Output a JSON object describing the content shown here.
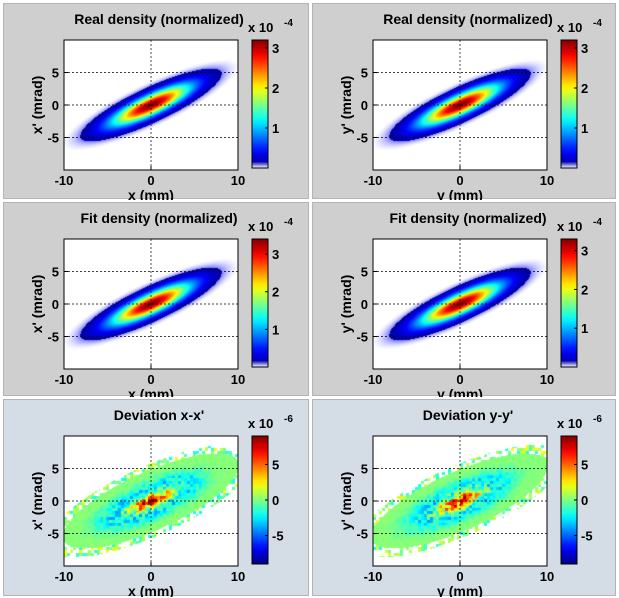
{
  "figure": {
    "colormap": "jet",
    "panel_background": "#cfcfcf",
    "bottom_row_background": "#d4dde6"
  },
  "chart_data": [
    {
      "type": "heatmap",
      "title": "Real density (normalized)",
      "xlabel": "x (mm)",
      "ylabel": "x' (mrad)",
      "xlim": [
        -10,
        10
      ],
      "ylim": [
        -10,
        10
      ],
      "xticks": [
        -10,
        0,
        10
      ],
      "yticks": [
        -5,
        0,
        5
      ],
      "grid": true,
      "colorbar": {
        "min": 0,
        "max": 3.2,
        "ticks": [
          1,
          2,
          3
        ],
        "exponent_label": "x 10",
        "exponent": "-4"
      },
      "distribution": {
        "kind": "gaussian",
        "peak": 3.2,
        "tilt_deg": 33,
        "sigma_major": 3.6,
        "sigma_minor": 0.95
      }
    },
    {
      "type": "heatmap",
      "title": "Real density (normalized)",
      "xlabel": "y (mm)",
      "ylabel": "y' (mrad)",
      "xlim": [
        -10,
        10
      ],
      "ylim": [
        -10,
        10
      ],
      "xticks": [
        -10,
        0,
        10
      ],
      "yticks": [
        -5,
        0,
        5
      ],
      "grid": true,
      "colorbar": {
        "min": 0,
        "max": 3.2,
        "ticks": [
          1,
          2,
          3
        ],
        "exponent_label": "x 10",
        "exponent": "-4"
      },
      "distribution": {
        "kind": "gaussian",
        "peak": 3.2,
        "tilt_deg": 33,
        "sigma_major": 3.6,
        "sigma_minor": 0.95
      }
    },
    {
      "type": "heatmap",
      "title": "Fit density (normalized)",
      "xlabel": "x (mm)",
      "ylabel": "x' (mrad)",
      "xlim": [
        -10,
        10
      ],
      "ylim": [
        -10,
        10
      ],
      "xticks": [
        -10,
        0,
        10
      ],
      "yticks": [
        -5,
        0,
        5
      ],
      "grid": true,
      "colorbar": {
        "min": 0,
        "max": 3.4,
        "ticks": [
          1,
          2,
          3
        ],
        "exponent_label": "x 10",
        "exponent": "-4"
      },
      "distribution": {
        "kind": "gaussian",
        "peak": 3.4,
        "tilt_deg": 33,
        "sigma_major": 3.6,
        "sigma_minor": 0.95
      }
    },
    {
      "type": "heatmap",
      "title": "Fit density (normalized)",
      "xlabel": "y (mm)",
      "ylabel": "y' (mrad)",
      "xlim": [
        -10,
        10
      ],
      "ylim": [
        -10,
        10
      ],
      "xticks": [
        -10,
        0,
        10
      ],
      "yticks": [
        -5,
        0,
        5
      ],
      "grid": true,
      "colorbar": {
        "min": 0,
        "max": 3.3,
        "ticks": [
          1,
          2,
          3
        ],
        "exponent_label": "x 10",
        "exponent": "-4"
      },
      "distribution": {
        "kind": "gaussian",
        "peak": 3.3,
        "tilt_deg": 33,
        "sigma_major": 3.6,
        "sigma_minor": 0.95
      }
    },
    {
      "type": "heatmap",
      "title": "Deviation x-x'",
      "xlabel": "x (mm)",
      "ylabel": "x' (mrad)",
      "xlim": [
        -10,
        10
      ],
      "ylim": [
        -10,
        10
      ],
      "xticks": [
        -10,
        0,
        10
      ],
      "yticks": [
        -5,
        0,
        5
      ],
      "grid": true,
      "colorbar": {
        "min": -9,
        "max": 9,
        "ticks": [
          -5,
          0,
          5
        ],
        "exponent_label": "x 10",
        "exponent": "-6"
      },
      "distribution": {
        "kind": "residual",
        "peak": 8,
        "tilt_deg": 33,
        "sigma_major": 4.2,
        "sigma_minor": 1.5
      }
    },
    {
      "type": "heatmap",
      "title": "Deviation y-y'",
      "xlabel": "y (mm)",
      "ylabel": "y' (mrad)",
      "xlim": [
        -10,
        10
      ],
      "ylim": [
        -10,
        10
      ],
      "xticks": [
        -10,
        0,
        10
      ],
      "yticks": [
        -5,
        0,
        5
      ],
      "grid": true,
      "colorbar": {
        "min": -9,
        "max": 9,
        "ticks": [
          -5,
          0,
          5
        ],
        "exponent_label": "x 10",
        "exponent": "-6"
      },
      "distribution": {
        "kind": "residual",
        "peak": 8,
        "tilt_deg": 33,
        "sigma_major": 4.2,
        "sigma_minor": 1.5
      }
    }
  ]
}
